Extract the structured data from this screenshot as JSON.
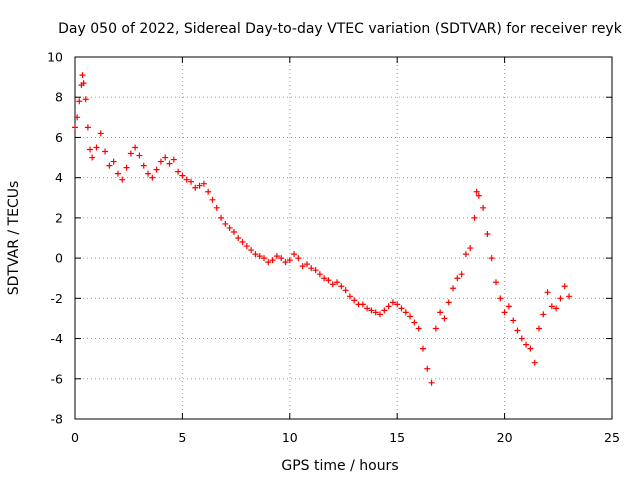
{
  "chart_data": {
    "type": "scatter",
    "title": "Day 050 of 2022, Sidereal Day-to-day VTEC variation (SDTVAR) for receiver reyk",
    "xlabel": "GPS time / hours",
    "ylabel": "SDTVAR / TECUs",
    "xlim": [
      0,
      25
    ],
    "ylim": [
      -8,
      10
    ],
    "xticks": [
      0,
      5,
      10,
      15,
      20,
      25
    ],
    "yticks": [
      -8,
      -6,
      -4,
      -2,
      0,
      2,
      4,
      6,
      8,
      10
    ],
    "grid": true,
    "marker": "+",
    "color": "#ff0000",
    "series": [
      {
        "name": "SDTVAR",
        "x": [
          0.0,
          0.1,
          0.2,
          0.3,
          0.35,
          0.4,
          0.5,
          0.6,
          0.7,
          0.8,
          1.0,
          1.2,
          1.4,
          1.6,
          1.8,
          2.0,
          2.2,
          2.4,
          2.6,
          2.8,
          3.0,
          3.2,
          3.4,
          3.6,
          3.8,
          4.0,
          4.2,
          4.4,
          4.6,
          4.8,
          5.0,
          5.2,
          5.4,
          5.6,
          5.8,
          6.0,
          6.2,
          6.4,
          6.6,
          6.8,
          7.0,
          7.2,
          7.4,
          7.6,
          7.8,
          8.0,
          8.2,
          8.4,
          8.6,
          8.8,
          9.0,
          9.2,
          9.4,
          9.6,
          9.8,
          10.0,
          10.2,
          10.4,
          10.6,
          10.8,
          11.0,
          11.2,
          11.4,
          11.6,
          11.8,
          12.0,
          12.2,
          12.4,
          12.6,
          12.8,
          13.0,
          13.2,
          13.4,
          13.6,
          13.8,
          14.0,
          14.2,
          14.4,
          14.6,
          14.8,
          15.0,
          15.2,
          15.4,
          15.6,
          15.8,
          16.0,
          16.2,
          16.4,
          16.6,
          16.8,
          17.0,
          17.2,
          17.4,
          17.6,
          17.8,
          18.0,
          18.2,
          18.4,
          18.6,
          18.7,
          18.8,
          19.0,
          19.2,
          19.4,
          19.6,
          19.8,
          20.0,
          20.2,
          20.4,
          20.6,
          20.8,
          21.0,
          21.2,
          21.4,
          21.6,
          21.8,
          22.0,
          22.2,
          22.4,
          22.6,
          22.8,
          23.0
        ],
        "y": [
          6.5,
          7.0,
          7.8,
          8.6,
          9.1,
          8.7,
          7.9,
          6.5,
          5.4,
          5.0,
          5.5,
          6.2,
          5.3,
          4.6,
          4.8,
          4.2,
          3.9,
          4.5,
          5.2,
          5.5,
          5.1,
          4.6,
          4.2,
          4.0,
          4.4,
          4.8,
          5.0,
          4.7,
          4.9,
          4.3,
          4.1,
          3.9,
          3.8,
          3.5,
          3.6,
          3.7,
          3.3,
          2.9,
          2.5,
          2.0,
          1.7,
          1.5,
          1.3,
          1.0,
          0.8,
          0.6,
          0.4,
          0.2,
          0.1,
          0.0,
          -0.2,
          -0.1,
          0.1,
          0.0,
          -0.2,
          -0.1,
          0.2,
          0.0,
          -0.4,
          -0.3,
          -0.5,
          -0.6,
          -0.8,
          -1.0,
          -1.1,
          -1.3,
          -1.2,
          -1.4,
          -1.6,
          -1.9,
          -2.1,
          -2.3,
          -2.3,
          -2.5,
          -2.6,
          -2.7,
          -2.8,
          -2.6,
          -2.4,
          -2.2,
          -2.3,
          -2.5,
          -2.7,
          -2.9,
          -3.2,
          -3.5,
          -4.5,
          -5.5,
          -6.2,
          -3.5,
          -2.7,
          -3.0,
          -2.2,
          -1.5,
          -1.0,
          -0.8,
          0.2,
          0.5,
          2.0,
          3.3,
          3.1,
          2.5,
          1.2,
          0.0,
          -1.2,
          -2.0,
          -2.7,
          -2.4,
          -3.1,
          -3.6,
          -4.0,
          -4.3,
          -4.5,
          -5.2,
          -3.5,
          -2.8,
          -1.7,
          -2.4,
          -2.5,
          -2.0,
          -1.4,
          -1.9
        ]
      }
    ]
  }
}
